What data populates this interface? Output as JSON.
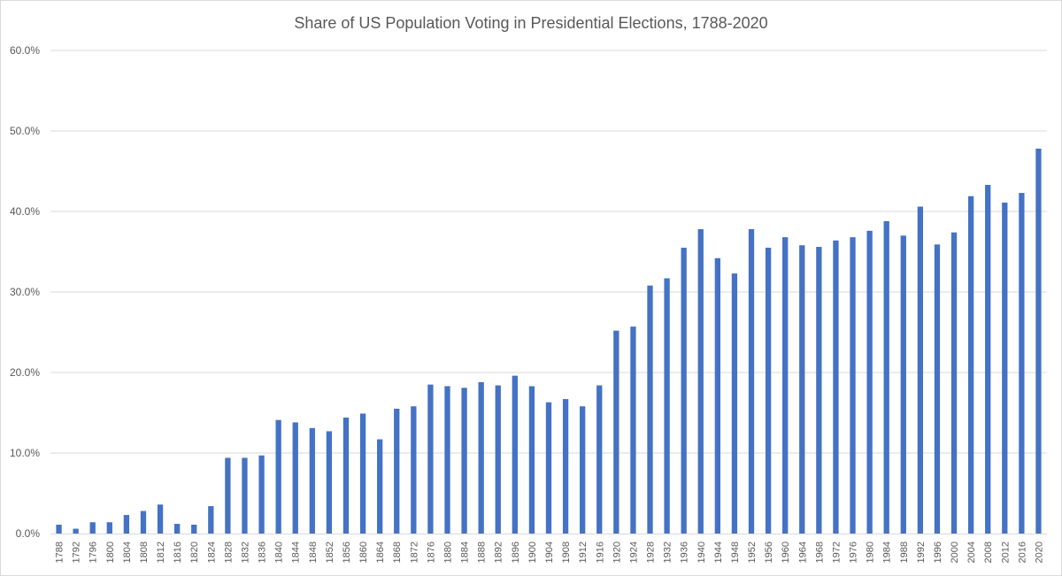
{
  "chart_data": {
    "type": "bar",
    "title": "Share of US Population Voting in Presidential Elections, 1788-2020",
    "xlabel": "",
    "ylabel": "",
    "ylim": [
      0,
      60
    ],
    "y_ticks": [
      "0.0%",
      "10.0%",
      "20.0%",
      "30.0%",
      "40.0%",
      "50.0%",
      "60.0%"
    ],
    "grid": true,
    "bar_color": "#4472C4",
    "categories": [
      "1788",
      "1792",
      "1796",
      "1800",
      "1804",
      "1808",
      "1812",
      "1816",
      "1820",
      "1824",
      "1828",
      "1832",
      "1836",
      "1840",
      "1844",
      "1848",
      "1852",
      "1856",
      "1860",
      "1864",
      "1868",
      "1872",
      "1876",
      "1880",
      "1884",
      "1888",
      "1892",
      "1896",
      "1900",
      "1904",
      "1908",
      "1912",
      "1916",
      "1920",
      "1924",
      "1928",
      "1932",
      "1936",
      "1940",
      "1944",
      "1948",
      "1952",
      "1956",
      "1960",
      "1964",
      "1968",
      "1972",
      "1976",
      "1980",
      "1984",
      "1988",
      "1992",
      "1996",
      "2000",
      "2004",
      "2008",
      "2012",
      "2016",
      "2020"
    ],
    "values": [
      1.1,
      0.6,
      1.4,
      1.4,
      2.3,
      2.8,
      3.6,
      1.2,
      1.1,
      3.4,
      9.4,
      9.4,
      9.7,
      14.1,
      13.8,
      13.1,
      12.7,
      14.4,
      14.9,
      11.7,
      15.5,
      15.8,
      18.5,
      18.3,
      18.1,
      18.8,
      18.4,
      19.6,
      18.3,
      16.3,
      16.7,
      15.8,
      18.4,
      25.2,
      25.7,
      30.8,
      31.7,
      35.5,
      37.8,
      34.2,
      32.3,
      37.8,
      35.5,
      36.8,
      35.8,
      35.6,
      36.4,
      36.8,
      37.6,
      38.8,
      37.0,
      40.6,
      35.9,
      37.4,
      41.9,
      43.3,
      41.1,
      42.3,
      47.8
    ]
  }
}
